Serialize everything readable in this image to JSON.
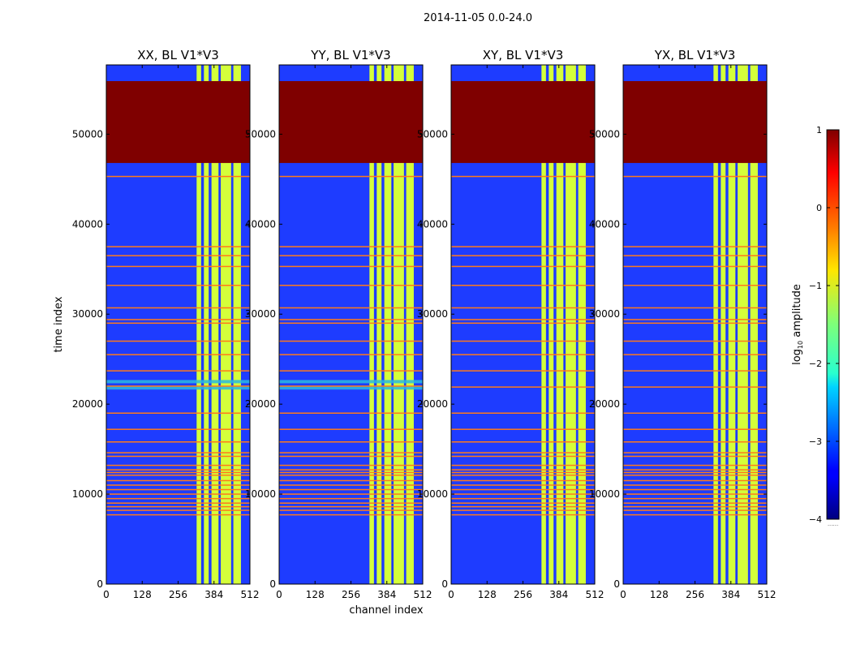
{
  "suptitle": "2014-11-05 0.0-24.0",
  "shared_axes": {
    "xlabel": "channel index",
    "ylabel": "time index",
    "x_ticks": [
      0,
      128,
      256,
      384,
      512
    ],
    "y_ticks": [
      0,
      10000,
      20000,
      30000,
      40000,
      50000
    ],
    "xlim": [
      0,
      512
    ],
    "ylim": [
      0,
      57700
    ]
  },
  "colorbar": {
    "label_main": "log",
    "label_sub": "10",
    "label_rest": " amplitude",
    "ticks": [
      "1",
      "0",
      "−1",
      "−2",
      "−3",
      "−4"
    ],
    "tick_values": [
      1,
      0,
      -1,
      -2,
      -3,
      -4
    ],
    "vmin": -4,
    "vmax": 1,
    "dots": "......"
  },
  "colors": {
    "background_low": "#1e3cff",
    "flag_high": "#7f0000",
    "band_mid": "#d4ff3a",
    "band_gap": "#1030c0",
    "line_orange": "#ff7a1a",
    "cyan_stripe": "#2ab8e0"
  },
  "chart_data": [
    {
      "type": "heatmap",
      "title": "XX, BL V1*V3",
      "channel_bands": [
        [
          322,
          338
        ],
        [
          348,
          365
        ],
        [
          375,
          400
        ],
        [
          408,
          445
        ],
        [
          453,
          480
        ]
      ],
      "flagged_block": [
        46800,
        55900
      ],
      "orange_lines": [
        45300,
        37500,
        36500,
        35300,
        33200,
        30700,
        29400,
        29000,
        27000,
        25500,
        23700,
        22000,
        19000,
        17200,
        15800,
        14600,
        14200,
        13200,
        12700,
        12400,
        12100,
        11500,
        11000,
        10500,
        10000,
        9500,
        9000,
        8600,
        8200,
        7700
      ],
      "cyan_stripes": [
        21800,
        22500
      ]
    },
    {
      "type": "heatmap",
      "title": "YY, BL V1*V3",
      "channel_bands": [
        [
          322,
          338
        ],
        [
          348,
          365
        ],
        [
          375,
          400
        ],
        [
          408,
          445
        ],
        [
          453,
          480
        ]
      ],
      "flagged_block": [
        46800,
        55900
      ],
      "orange_lines": [
        45300,
        37500,
        36500,
        35300,
        33200,
        30700,
        29400,
        29000,
        27000,
        25500,
        23700,
        22000,
        19000,
        17200,
        15800,
        14600,
        14200,
        13200,
        12700,
        12400,
        12100,
        11500,
        11000,
        10500,
        10000,
        9500,
        9000,
        8600,
        8200,
        7700
      ],
      "cyan_stripes": [
        21800,
        22500
      ]
    },
    {
      "type": "heatmap",
      "title": "XY, BL V1*V3",
      "channel_bands": [
        [
          322,
          338
        ],
        [
          348,
          365
        ],
        [
          375,
          400
        ],
        [
          408,
          445
        ],
        [
          453,
          480
        ]
      ],
      "flagged_block": [
        46800,
        55900
      ],
      "orange_lines": [
        45300,
        37500,
        36500,
        35300,
        33200,
        30700,
        29400,
        29000,
        27000,
        25500,
        23700,
        21900,
        19000,
        17200,
        15800,
        14600,
        14200,
        13200,
        12700,
        12400,
        12100,
        11500,
        11000,
        10500,
        10000,
        9500,
        9000,
        8600,
        8200,
        7700
      ],
      "cyan_stripes": []
    },
    {
      "type": "heatmap",
      "title": "YX, BL V1*V3",
      "channel_bands": [
        [
          322,
          338
        ],
        [
          348,
          365
        ],
        [
          375,
          400
        ],
        [
          408,
          445
        ],
        [
          453,
          480
        ]
      ],
      "flagged_block": [
        46800,
        55900
      ],
      "orange_lines": [
        45300,
        37500,
        36500,
        35300,
        33200,
        30700,
        29400,
        29000,
        27000,
        25500,
        23700,
        21900,
        19000,
        17200,
        15800,
        14600,
        14200,
        13200,
        12700,
        12400,
        12100,
        11500,
        11000,
        10500,
        10000,
        9500,
        9000,
        8600,
        8200,
        7700
      ],
      "cyan_stripes": []
    }
  ]
}
